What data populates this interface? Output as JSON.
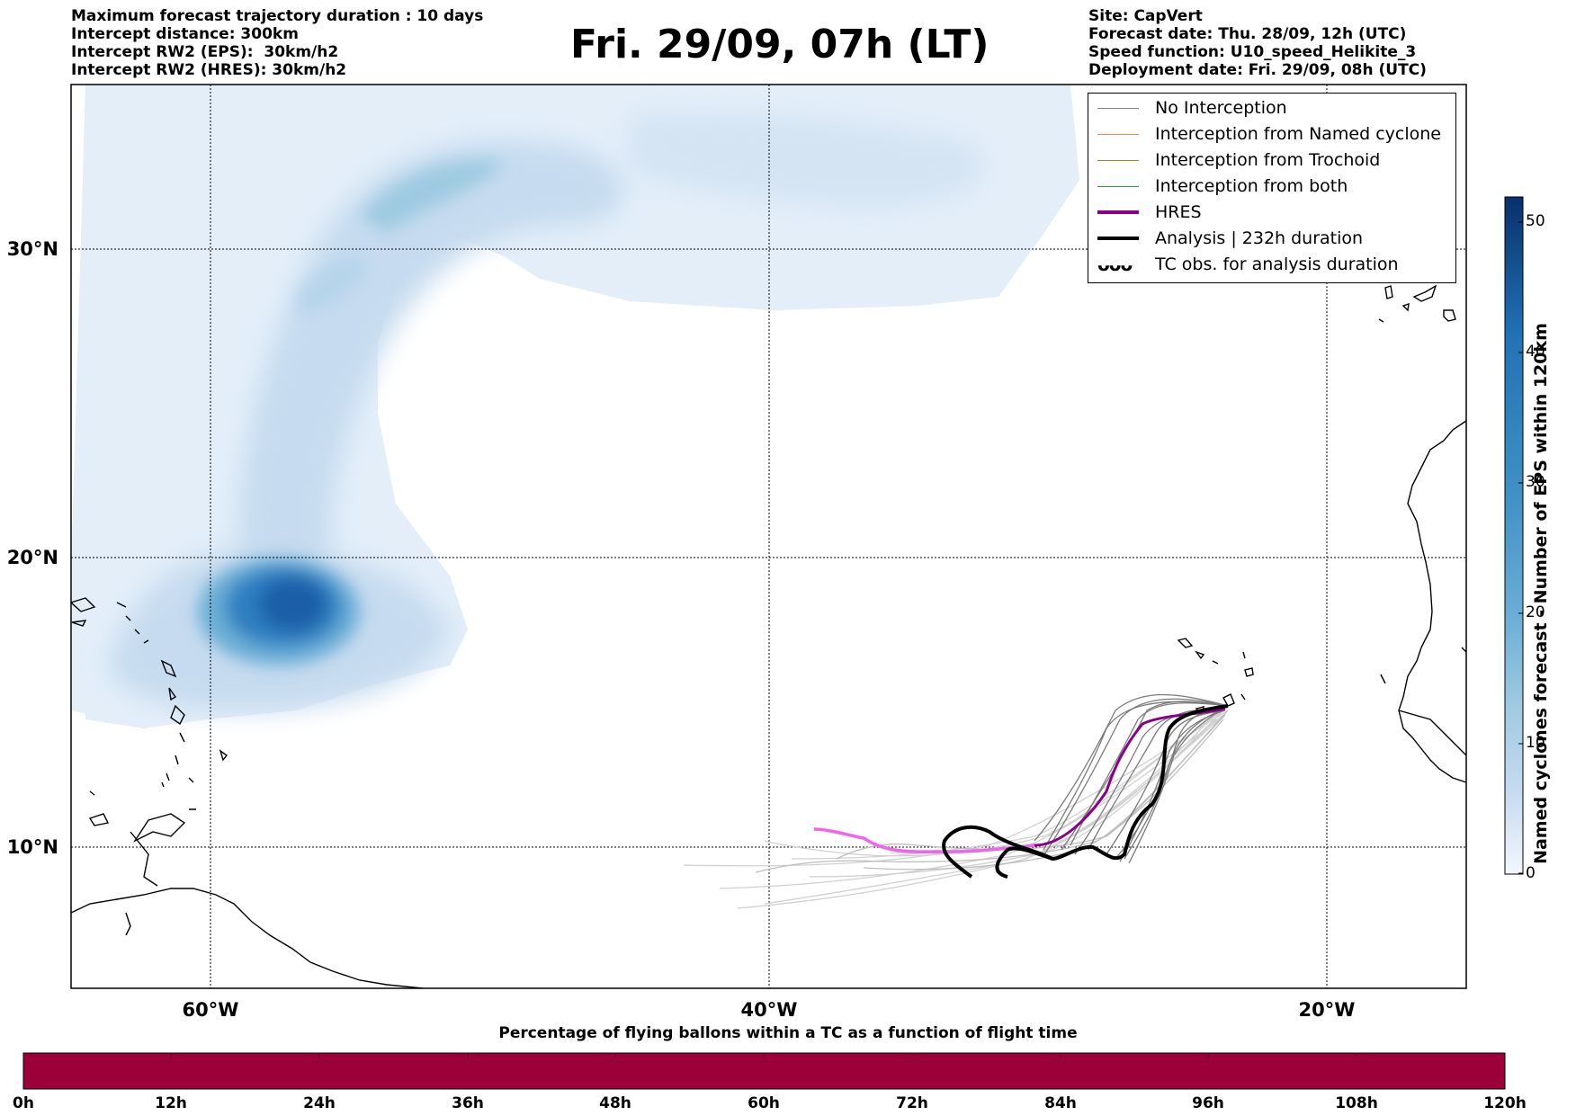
{
  "header": {
    "left": [
      "Maximum forecast trajectory duration : 10 days",
      "Intercept distance: 300km",
      "Intercept RW2 (EPS):  30km/h2",
      "Intercept RW2 (HRES): 30km/h2"
    ],
    "right": [
      "Site: CapVert",
      "Forecast date: Thu. 28/09, 12h (UTC)",
      "Speed function: U10_speed_Helikite_3",
      "Deployment date: Fri. 29/09, 08h (UTC)"
    ],
    "title": "Fri. 29/09, 07h (LT)"
  },
  "map": {
    "lat_labels": [
      "30°N",
      "20°N",
      "10°N"
    ],
    "lon_labels": [
      "60°W",
      "40°W",
      "20°W"
    ],
    "extent": {
      "lon": [
        -65,
        -15
      ],
      "lat": [
        5.5,
        34.8
      ]
    },
    "ocean_color": "#ffffff",
    "density_colors": [
      "#e3eef9",
      "#c6dbef",
      "#9ecae1",
      "#6baed6",
      "#2171b5",
      "#08306b"
    ]
  },
  "legend": {
    "items": [
      {
        "label": "No Interception",
        "color": "#808080"
      },
      {
        "label": "Interception from Named cyclone",
        "color": "#ff7f50"
      },
      {
        "label": "Interception from Trochoid",
        "color": "#9a8c3a"
      },
      {
        "label": "Interception from both",
        "color": "#2ca02c"
      },
      {
        "label": "HRES",
        "color": "#8b008b"
      },
      {
        "label": "Analysis | 232h duration",
        "color": "#000000"
      },
      {
        "label": "TC obs. for analysis duration",
        "color": "#000000",
        "marker": "tc-symbol"
      }
    ],
    "tc_symbol_text": "ᴗᴗᴗ"
  },
  "colorbar": {
    "title": "Named cyclones forecast - Number of EPS within 120km",
    "ticks": [
      "50",
      "40",
      "30",
      "20",
      "10",
      "0"
    ],
    "range": [
      0,
      52
    ],
    "colors_top_to_bottom": [
      "#08306b",
      "#2171b5",
      "#4292c6",
      "#6baed6",
      "#9ecae1",
      "#c6dbef",
      "#eef5fc"
    ]
  },
  "bottom_bar": {
    "title": "Percentage of flying ballons within a TC as a function of flight time",
    "color": "#9c0039",
    "ticks": [
      "0h",
      "12h",
      "24h",
      "36h",
      "48h",
      "60h",
      "72h",
      "84h",
      "96h",
      "108h",
      "120h"
    ]
  }
}
